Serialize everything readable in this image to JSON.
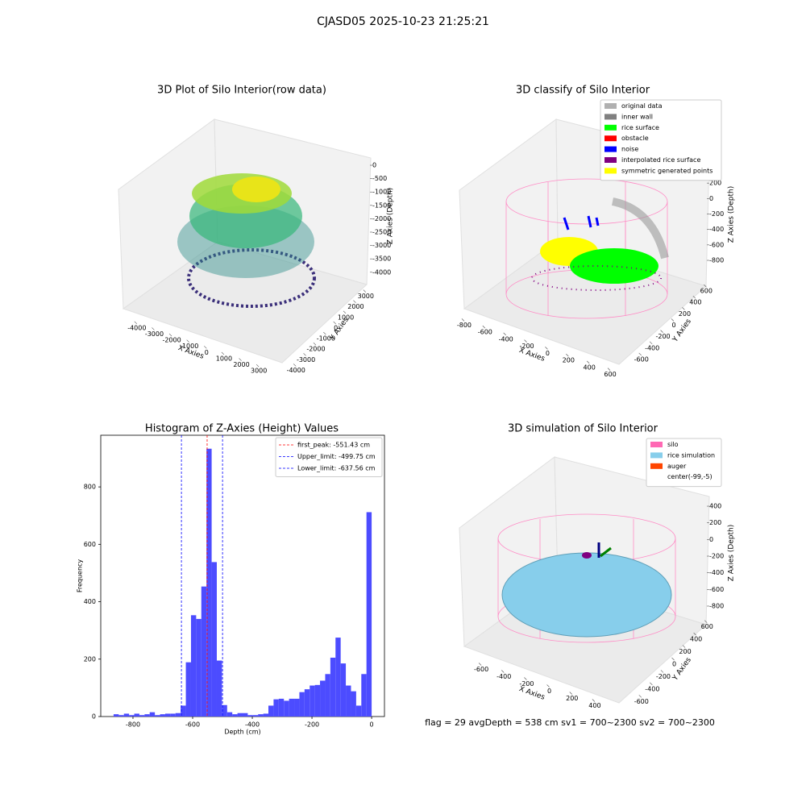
{
  "suptitle": "CJASD05 2025-10-23 21:25:21",
  "footer": "flag = 29  avgDepth = 538 cm  sv1 = 700~2300  sv2 = 700~2300",
  "chart_data": [
    {
      "type": "scatter3d",
      "title": "3D Plot of Silo Interior(row data)",
      "xlabel": "X Axies",
      "ylabel": "Y Axies",
      "zlabel": "Z Axies (Depth)",
      "xlim": [
        -4500,
        3500
      ],
      "xticks": [
        -4000,
        -3000,
        -2000,
        -1000,
        0,
        1000,
        2000,
        3000
      ],
      "ylim": [
        -4500,
        3500
      ],
      "yticks": [
        -4000,
        -3000,
        -2000,
        -1000,
        0,
        1000,
        2000,
        3000
      ],
      "zlim": [
        -4200,
        200
      ],
      "zticks": [
        0,
        -500,
        -1000,
        -1500,
        -2000,
        -2500,
        -3000,
        -3500,
        -4000
      ]
    },
    {
      "type": "scatter3d",
      "title": "3D classify of Silo Interior",
      "xlabel": "X Axies",
      "ylabel": "Y Axies",
      "zlabel": "Z Axies (Depth)",
      "xlim": [
        -900,
        700
      ],
      "xticks": [
        -800,
        -600,
        -400,
        -200,
        0,
        200,
        400,
        600
      ],
      "ylim": [
        -700,
        700
      ],
      "yticks": [
        -600,
        -400,
        -200,
        0,
        200,
        400,
        600
      ],
      "zlim": [
        -900,
        500
      ],
      "zticks": [
        -800,
        -600,
        -400,
        -200,
        0,
        200,
        400
      ],
      "legend": [
        {
          "name": "original data",
          "color": "#b0b0b0"
        },
        {
          "name": "inner wall",
          "color": "#808080"
        },
        {
          "name": "rice surface",
          "color": "#00ff00"
        },
        {
          "name": "obstacle",
          "color": "#ff0000"
        },
        {
          "name": "noise",
          "color": "#0000ff"
        },
        {
          "name": "interpolated rice surface",
          "color": "#800080"
        },
        {
          "name": "symmetric generated points",
          "color": "#ffff00"
        }
      ]
    },
    {
      "type": "histogram",
      "title": "Histogram of Z-Axies (Height) Values",
      "xlabel": "Depth (cm)",
      "ylabel": "Frequency",
      "color": "#4c4cff",
      "bins": [
        -865,
        -847.7,
        -830.4,
        -813.1,
        -795.8,
        -778.5,
        -761.2,
        -743.9,
        -726.6,
        -709.3,
        -692,
        -674.7,
        -657.4,
        -640.1,
        -622.8,
        -605.5,
        -588.2,
        -570.9,
        -553.6,
        -536.3,
        -519,
        -501.7,
        -484.4,
        -467.1,
        -449.8,
        -432.5,
        -415.2,
        -397.9,
        -380.6,
        -363.3,
        -346,
        -328.7,
        -311.4,
        -294.1,
        -276.8,
        -259.5,
        -242.2,
        -224.9,
        -207.6,
        -190.3,
        -173,
        -155.7,
        -138.4,
        -121.1,
        -103.8,
        -86.5,
        -69.2,
        -51.9,
        -34.6,
        -17.3,
        0
      ],
      "values": [
        8,
        5,
        10,
        5,
        10,
        5,
        8,
        15,
        5,
        8,
        10,
        10,
        12,
        38,
        189,
        353,
        340,
        453,
        933,
        538,
        195,
        40,
        15,
        8,
        12,
        12,
        5,
        5,
        8,
        10,
        38,
        60,
        62,
        55,
        62,
        62,
        85,
        95,
        108,
        110,
        125,
        148,
        205,
        275,
        185,
        108,
        88,
        38,
        148,
        712
      ],
      "xlim": [
        -908,
        43
      ],
      "xticks": [
        -800,
        -600,
        -400,
        -200,
        0
      ],
      "ylim": [
        0,
        980
      ],
      "yticks": [
        0,
        200,
        400,
        600,
        800
      ],
      "vlines": [
        {
          "label": "first_peak: -551.43 cm",
          "value": -551.43,
          "color": "#ff0000"
        },
        {
          "label": "Upper_limit: -499.75 cm",
          "value": -499.75,
          "color": "#0000ff"
        },
        {
          "label": "Lower_limit: -637.56 cm",
          "value": -637.56,
          "color": "#0000ff"
        }
      ]
    },
    {
      "type": "surface3d",
      "title": "3D simulation of Silo Interior",
      "xlabel": "X Axies",
      "ylabel": "Y Axies",
      "zlabel": "Z Axies (Depth)",
      "xlim": [
        -700,
        500
      ],
      "xticks": [
        -600,
        -400,
        -200,
        0,
        200,
        400
      ],
      "ylim": [
        -700,
        700
      ],
      "yticks": [
        -600,
        -400,
        -200,
        0,
        200,
        400,
        600
      ],
      "zlim": [
        -900,
        500
      ],
      "zticks": [
        -800,
        -600,
        -400,
        -200,
        0,
        200,
        400
      ],
      "legend": [
        {
          "name": "silo",
          "color": "#ff69b4"
        },
        {
          "name": "rice simulation",
          "color": "#87ceeb"
        },
        {
          "name": "auger",
          "color": "#ff4500"
        },
        {
          "name": "center(-99,-5)",
          "color": "#ffffff"
        }
      ]
    }
  ]
}
